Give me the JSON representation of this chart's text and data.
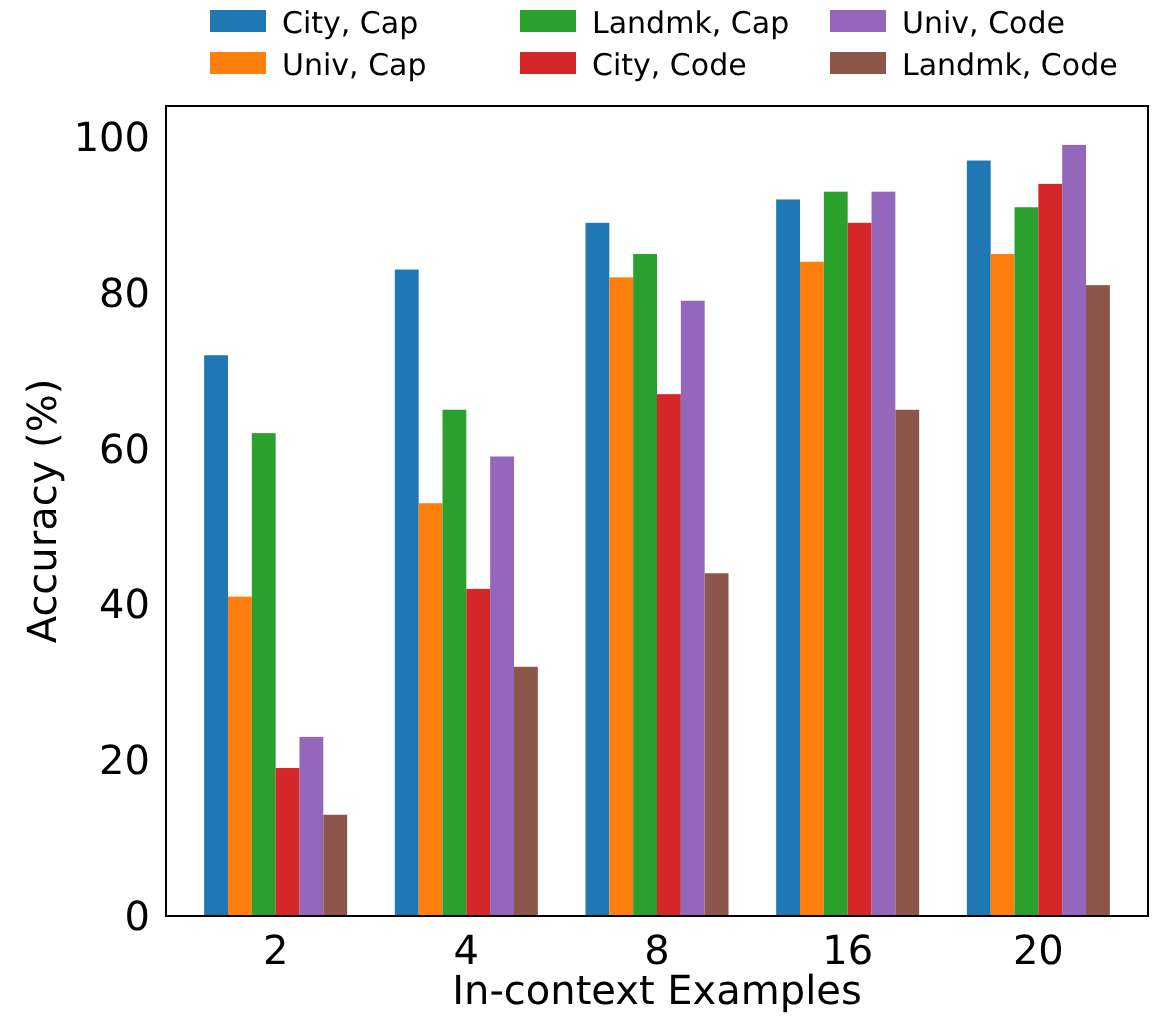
{
  "chart_data": {
    "type": "bar",
    "xlabel": "In-context Examples",
    "ylabel": "Accuracy (%)",
    "categories": [
      "2",
      "4",
      "8",
      "16",
      "20"
    ],
    "series": [
      {
        "name": "City, Cap",
        "color": "#1f77b4",
        "values": [
          72,
          83,
          89,
          92,
          97
        ]
      },
      {
        "name": "Univ, Cap",
        "color": "#ff7f0e",
        "values": [
          41,
          53,
          82,
          84,
          85
        ]
      },
      {
        "name": "Landmk, Cap",
        "color": "#2ca02c",
        "values": [
          62,
          65,
          85,
          93,
          91
        ]
      },
      {
        "name": "City, Code",
        "color": "#d62728",
        "values": [
          19,
          42,
          67,
          89,
          94
        ]
      },
      {
        "name": "Univ, Code",
        "color": "#9467bd",
        "values": [
          23,
          59,
          79,
          93,
          99
        ]
      },
      {
        "name": "Landmk, Code",
        "color": "#8c564b",
        "values": [
          13,
          32,
          44,
          65,
          81
        ]
      }
    ],
    "ylim": [
      0,
      104
    ],
    "yticks": [
      0,
      20,
      40,
      60,
      80,
      100
    ],
    "legend": "top"
  }
}
